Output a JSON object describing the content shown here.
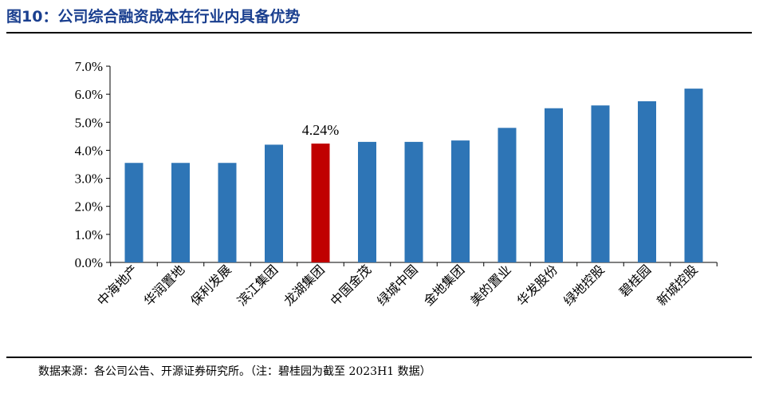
{
  "figure_title": "图10：公司综合融资成本在行业内具备优势",
  "source_note": "数据来源：各公司公告、开源证券研究所。（注：碧桂园为截至 2023H1 数据）",
  "chart_data": {
    "type": "bar",
    "categories": [
      "中海地产",
      "华润置地",
      "保利发展",
      "滨江集团",
      "龙湖集团",
      "中国金茂",
      "绿城中国",
      "金地集团",
      "美的置业",
      "华发股份",
      "绿地控股",
      "碧桂园",
      "新城控股"
    ],
    "values": [
      3.55,
      3.55,
      3.55,
      4.2,
      4.24,
      4.3,
      4.3,
      4.35,
      4.8,
      5.5,
      5.6,
      5.75,
      6.2
    ],
    "ylim": [
      0,
      7
    ],
    "yticks": [
      "0.0%",
      "1.0%",
      "2.0%",
      "3.0%",
      "4.0%",
      "5.0%",
      "6.0%",
      "7.0%"
    ],
    "data_labels": [
      {
        "category": "龙湖集团",
        "text": "4.24%"
      }
    ],
    "highlight_category": "龙湖集团",
    "colors": {
      "bar": "#2e75b6",
      "highlight": "#c00000",
      "axis": "#000000"
    },
    "grid": false,
    "legend": "none",
    "title": "",
    "xlabel": "",
    "ylabel": ""
  }
}
